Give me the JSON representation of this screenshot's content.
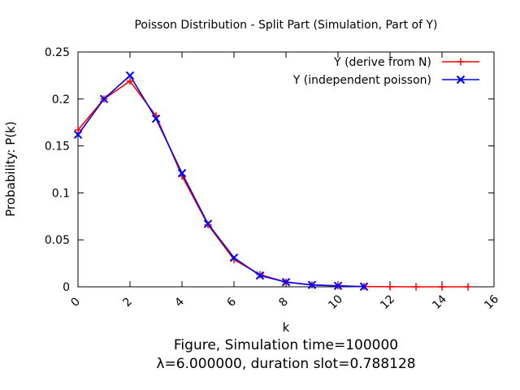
{
  "chart_data": {
    "type": "line",
    "title": "Poisson Distribution - Split Part (Simulation, Part of Y)",
    "xlabel": "k",
    "ylabel": "Probability: P(k)",
    "xlim": [
      0,
      16
    ],
    "ylim": [
      0,
      0.25
    ],
    "xticks": [
      "0",
      "2",
      "4",
      "6",
      "8",
      "10",
      "12",
      "14",
      "16"
    ],
    "yticks": [
      "0",
      "0.05",
      "0.1",
      "0.15",
      "0.2",
      "0.25"
    ],
    "grid": false,
    "legend_position": "top-right",
    "caption": [
      "Figure, Simulation time=100000",
      "λ=6.000000, duration slot=0.788128"
    ],
    "series": [
      {
        "name": "Y (derive from N)",
        "color": "#ff0000",
        "marker": "plus",
        "x": [
          0,
          1,
          2,
          3,
          4,
          5,
          6,
          7,
          8,
          9,
          10,
          11,
          12,
          13,
          14,
          15
        ],
        "y": [
          0.167,
          0.2,
          0.219,
          0.182,
          0.118,
          0.066,
          0.029,
          0.013,
          0.005,
          0.002,
          0.001,
          0.0003,
          0.0001,
          0,
          0,
          0
        ]
      },
      {
        "name": "Y (independent poisson)",
        "color": "#0000ff",
        "marker": "cross",
        "x": [
          0,
          1,
          2,
          3,
          4,
          5,
          6,
          7,
          8,
          9,
          10,
          11
        ],
        "y": [
          0.162,
          0.2,
          0.225,
          0.179,
          0.121,
          0.067,
          0.031,
          0.012,
          0.005,
          0.002,
          0.001,
          0.0002
        ]
      }
    ]
  }
}
